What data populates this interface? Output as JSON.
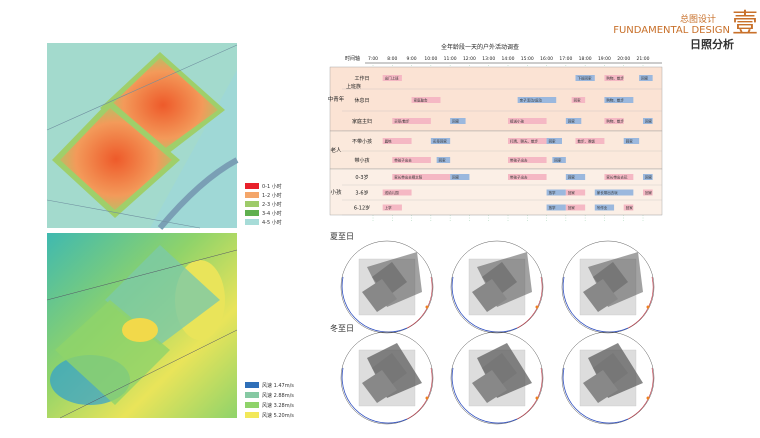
{
  "header": {
    "badge": "壹",
    "title_cn": "总图设计",
    "title_en": "FUNDAMENTAL DESIGN",
    "subtitle": "日照分析"
  },
  "sunlight_legend": [
    {
      "label": "0-1 小时",
      "color": "#e8202a"
    },
    {
      "label": "1-2 小时",
      "color": "#f4a66a"
    },
    {
      "label": "2-3 小时",
      "color": "#9ecb6a"
    },
    {
      "label": "3-4 小时",
      "color": "#5fb04e"
    },
    {
      "label": "4-5 小时",
      "color": "#a7dcd8"
    }
  ],
  "wind_legend": [
    {
      "label": "风速 1.47m/s",
      "color": "#2f6fb8"
    },
    {
      "label": "风速 2.88m/s",
      "color": "#86c9a3"
    },
    {
      "label": "风速 3.28m/s",
      "color": "#8fd36a"
    },
    {
      "label": "风速 5.20m/s",
      "color": "#f2e85a"
    }
  ],
  "schedule": {
    "title": "全年龄段一天的户外活动调查",
    "axis_label": "时间轴",
    "times": [
      {
        "value": 7,
        "label": "7:00"
      },
      {
        "value": 8,
        "label": "8:00"
      },
      {
        "value": 9,
        "label": "9:00"
      },
      {
        "value": 10,
        "label": "10:00"
      },
      {
        "value": 11,
        "label": "11:00"
      },
      {
        "value": 12,
        "label": "12:00"
      },
      {
        "value": 13,
        "label": "13:00"
      },
      {
        "value": 14,
        "label": "14:00"
      },
      {
        "value": 15,
        "label": "15:00"
      },
      {
        "value": 16,
        "label": "16:00"
      },
      {
        "value": 17,
        "label": "17:00"
      },
      {
        "value": 18,
        "label": "18:00"
      },
      {
        "value": 19,
        "label": "19:00"
      },
      {
        "value": 20,
        "label": "20:00"
      },
      {
        "value": 21,
        "label": "21:00"
      }
    ],
    "groups": [
      {
        "label": "中青年",
        "rows": [
          {
            "label": "工作日",
            "parent": "上班族",
            "activities": [
              {
                "start": 7.5,
                "end": 8.5,
                "label": "出门上班"
              },
              {
                "start": 17.5,
                "end": 18.5,
                "label": "下班回家"
              },
              {
                "start": 19,
                "end": 20,
                "label": "购物、散步"
              },
              {
                "start": 20.8,
                "end": 21.5,
                "label": "回家"
              }
            ]
          },
          {
            "label": "休息日",
            "activities": [
              {
                "start": 9,
                "end": 10.5,
                "label": "家庭聚会"
              },
              {
                "start": 14.5,
                "end": 16.5,
                "label": "亲子活动/运动"
              },
              {
                "start": 17.3,
                "end": 18,
                "label": "回家"
              },
              {
                "start": 19,
                "end": 20.5,
                "label": "购物、散步"
              }
            ]
          },
          {
            "label": "家庭主妇",
            "activities": [
              {
                "start": 8,
                "end": 10,
                "label": "买菜/散步"
              },
              {
                "start": 11,
                "end": 11.8,
                "label": "回家"
              },
              {
                "start": 14,
                "end": 16,
                "label": "接送小孩"
              },
              {
                "start": 17,
                "end": 17.8,
                "label": "回家"
              },
              {
                "start": 19,
                "end": 20,
                "label": "购物、散步"
              },
              {
                "start": 21,
                "end": 21.5,
                "label": "回家"
              }
            ]
          }
        ]
      },
      {
        "label": "老人",
        "rows": [
          {
            "label": "不带小孩",
            "activities": [
              {
                "start": 7.5,
                "end": 9,
                "label": "晨练"
              },
              {
                "start": 10,
                "end": 11,
                "label": "买菜回家"
              },
              {
                "start": 14,
                "end": 16,
                "label": "打牌、聊天、散步"
              },
              {
                "start": 16,
                "end": 16.8,
                "label": "回家"
              },
              {
                "start": 17.5,
                "end": 19,
                "label": "散步、晚饭"
              },
              {
                "start": 20,
                "end": 20.8,
                "label": "回家"
              }
            ]
          },
          {
            "label": "带小孩",
            "activities": [
              {
                "start": 8,
                "end": 10,
                "label": "带孩子出去"
              },
              {
                "start": 10.3,
                "end": 11,
                "label": "回家"
              },
              {
                "start": 14,
                "end": 16,
                "label": "带孩子出去"
              },
              {
                "start": 16.3,
                "end": 17,
                "label": "回家"
              }
            ]
          }
        ]
      },
      {
        "label": "小孩",
        "rows": [
          {
            "label": "0-3岁",
            "activities": [
              {
                "start": 8,
                "end": 11,
                "label": "家长带出去晒太阳"
              },
              {
                "start": 11,
                "end": 12,
                "label": "回家"
              },
              {
                "start": 14,
                "end": 16,
                "label": "带孩子出去"
              },
              {
                "start": 17,
                "end": 18,
                "label": "回家"
              },
              {
                "start": 19,
                "end": 20.5,
                "label": "家长带出去玩"
              },
              {
                "start": 21,
                "end": 21.5,
                "label": "回家"
              }
            ]
          },
          {
            "label": "3-6岁",
            "activities": [
              {
                "start": 7.5,
                "end": 9,
                "label": "送幼儿园"
              },
              {
                "start": 16,
                "end": 17,
                "label": "放学"
              },
              {
                "start": 17,
                "end": 18,
                "label": "回家"
              },
              {
                "start": 18.5,
                "end": 20.5,
                "label": "家长带出去玩"
              },
              {
                "start": 21,
                "end": 21.5,
                "label": "回家"
              }
            ]
          },
          {
            "label": "6-12岁",
            "activities": [
              {
                "start": 7.5,
                "end": 8.5,
                "label": "上学"
              },
              {
                "start": 16,
                "end": 17,
                "label": "放学"
              },
              {
                "start": 17,
                "end": 18,
                "label": "回家"
              },
              {
                "start": 18.5,
                "end": 19.5,
                "label": "写作业"
              },
              {
                "start": 20,
                "end": 20.5,
                "label": "回家"
              }
            ]
          }
        ]
      }
    ]
  },
  "solstice": {
    "summer": "夏至日",
    "winter": "冬至日"
  }
}
